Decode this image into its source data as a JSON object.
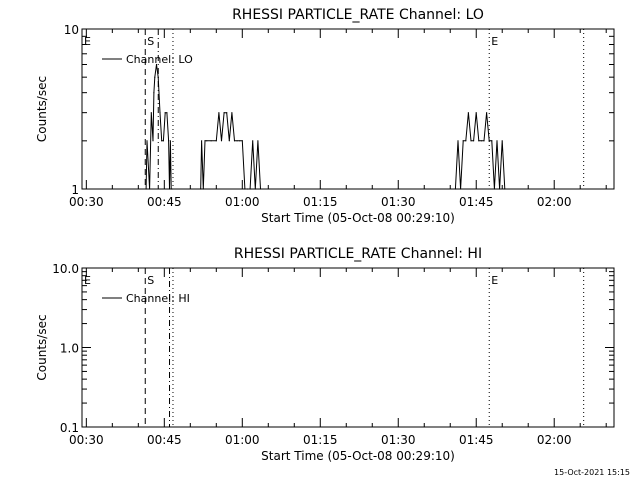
{
  "footer_timestamp": "15-Oct-2021 15:15",
  "chart_data": [
    {
      "type": "line",
      "title": "RHESSI PARTICLE_RATE Channel: LO",
      "xlabel": "Start Time (05-Oct-08 00:29:10)",
      "ylabel": "Counts/sec",
      "yscale": "log",
      "ylim": [
        1,
        10
      ],
      "ytick_labels": [
        "1",
        "10"
      ],
      "xlim": [
        "00:29:10",
        "02:11:30"
      ],
      "xtick_labels": [
        "00:30",
        "00:45",
        "01:00",
        "01:15",
        "01:30",
        "01:45",
        "02:00"
      ],
      "legend": {
        "position": "top-left",
        "entries": [
          "Channel: LO"
        ]
      },
      "event_markers": [
        {
          "label": "E",
          "time": "00:29:10",
          "style": "none"
        },
        {
          "label": "S",
          "time": "00:41:20",
          "style": "dashed"
        },
        {
          "label": "",
          "time": "00:43:50",
          "style": "dash-dot"
        },
        {
          "label": "",
          "time": "00:46:40",
          "style": "dotted"
        },
        {
          "label": "E",
          "time": "01:47:30",
          "style": "dotted"
        },
        {
          "label": "",
          "time": "02:05:40",
          "style": "dotted"
        }
      ],
      "series": [
        {
          "name": "Channel: LO",
          "x": [
            "00:41:30",
            "00:41:40",
            "00:42:10",
            "00:42:30",
            "00:42:50",
            "00:43:00",
            "00:43:10",
            "00:43:30",
            "00:43:50",
            "00:44:10",
            "00:44:30",
            "00:44:50",
            "00:45:10",
            "00:45:30",
            "00:45:50",
            "00:46:00",
            "00:46:10",
            "00:46:20",
            "00:46:30",
            "00:52:00",
            "00:52:10",
            "00:52:30",
            "00:52:50",
            "00:53:10",
            "00:54:00",
            "00:55:00",
            "00:55:30",
            "00:56:00",
            "00:56:30",
            "00:57:00",
            "00:57:30",
            "00:58:00",
            "00:58:30",
            "00:59:00",
            "00:59:30",
            "01:00:00",
            "01:00:30",
            "01:01:00",
            "01:01:30",
            "01:02:00",
            "01:02:30",
            "01:03:00",
            "01:03:30",
            "01:41:00",
            "01:41:30",
            "01:42:00",
            "01:42:30",
            "01:43:00",
            "01:43:30",
            "01:44:00",
            "01:44:30",
            "01:45:00",
            "01:45:30",
            "01:46:00",
            "01:46:30",
            "01:47:00",
            "01:47:30",
            "01:48:00",
            "01:48:30",
            "01:49:00",
            "01:49:30",
            "01:50:00",
            "01:50:30"
          ],
          "y": [
            1,
            2,
            1,
            3,
            2,
            4,
            5,
            6,
            5,
            3,
            2,
            2,
            3,
            3,
            2,
            1,
            2,
            1,
            1,
            1,
            2,
            1,
            2,
            2,
            2,
            2,
            3,
            2,
            3,
            3,
            2,
            3,
            2,
            2,
            2,
            2,
            1,
            1,
            1,
            2,
            1,
            2,
            1,
            1,
            2,
            1,
            2,
            2,
            3,
            2,
            2,
            3,
            2,
            2,
            2,
            3,
            2,
            2,
            1,
            2,
            1,
            2,
            1
          ]
        }
      ]
    },
    {
      "type": "line",
      "title": "RHESSI PARTICLE_RATE Channel: HI",
      "xlabel": "Start Time (05-Oct-08 00:29:10)",
      "ylabel": "Counts/sec",
      "yscale": "log",
      "ylim": [
        0.1,
        10
      ],
      "ytick_labels": [
        "0.1",
        "1.0",
        "10.0"
      ],
      "xlim": [
        "00:29:10",
        "02:11:30"
      ],
      "xtick_labels": [
        "00:30",
        "00:45",
        "01:00",
        "01:15",
        "01:30",
        "01:45",
        "02:00"
      ],
      "legend": {
        "position": "top-left",
        "entries": [
          "Channel: HI"
        ]
      },
      "event_markers": [
        {
          "label": "E",
          "time": "00:29:10",
          "style": "none"
        },
        {
          "label": "S",
          "time": "00:41:20",
          "style": "dashed"
        },
        {
          "label": "",
          "time": "00:46:00",
          "style": "dash-dot"
        },
        {
          "label": "",
          "time": "00:46:40",
          "style": "dotted"
        },
        {
          "label": "E",
          "time": "01:47:30",
          "style": "dotted"
        },
        {
          "label": "",
          "time": "02:05:40",
          "style": "dotted"
        }
      ],
      "series": [
        {
          "name": "Channel: HI",
          "x": [],
          "y": []
        }
      ]
    }
  ]
}
